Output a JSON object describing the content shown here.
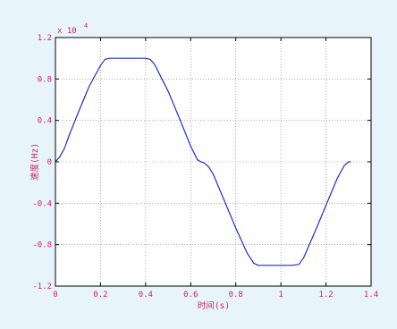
{
  "colors": {
    "figure_bg": "#e8f4fc",
    "axes_bg": "#ffffff",
    "axis": "#000000",
    "grid": "#7a7a7a",
    "label": "#d11f63",
    "line": "#1a2fd0"
  },
  "chart_data": {
    "type": "line",
    "title": "",
    "xlabel": "时间(s)",
    "ylabel": "速度(Hz)",
    "y_exponent_label": "x 10",
    "y_exponent": "4",
    "xlim": [
      0,
      1.4
    ],
    "ylim": [
      -1.2,
      1.2
    ],
    "grid": true,
    "x_ticks": [
      0,
      0.2,
      0.4,
      0.6,
      0.8,
      1,
      1.2,
      1.4
    ],
    "x_tick_labels": [
      "0",
      "0.2",
      "0.4",
      "0.6",
      "0.8",
      "1",
      "1.2",
      "1.4"
    ],
    "y_ticks": [
      -1.2,
      -0.8,
      -0.4,
      0,
      0.4,
      0.8,
      1.2
    ],
    "y_tick_labels": [
      "-1.2",
      "-0.8",
      "-0.4",
      "0",
      "0.4",
      "0.8",
      "1.2"
    ],
    "series": [
      {
        "x": [
          0,
          0.02,
          0.04,
          0.06,
          0.1,
          0.15,
          0.2,
          0.22,
          0.24,
          0.3,
          0.35,
          0.4,
          0.42,
          0.44,
          0.5,
          0.55,
          0.6,
          0.63,
          0.645,
          0.66,
          0.68,
          0.7,
          0.75,
          0.8,
          0.85,
          0.88,
          0.9,
          0.95,
          1.0,
          1.05,
          1.08,
          1.1,
          1.15,
          1.2,
          1.25,
          1.28,
          1.3,
          1.31
        ],
        "y": [
          0,
          0.05,
          0.13,
          0.25,
          0.47,
          0.73,
          0.93,
          0.99,
          1.0,
          1.0,
          1.0,
          1.0,
          0.99,
          0.94,
          0.68,
          0.42,
          0.15,
          0.02,
          0.0,
          -0.01,
          -0.05,
          -0.12,
          -0.38,
          -0.64,
          -0.88,
          -0.98,
          -1.0,
          -1.0,
          -1.0,
          -1.0,
          -0.99,
          -0.93,
          -0.68,
          -0.42,
          -0.16,
          -0.04,
          0.0,
          0.0
        ]
      }
    ]
  }
}
